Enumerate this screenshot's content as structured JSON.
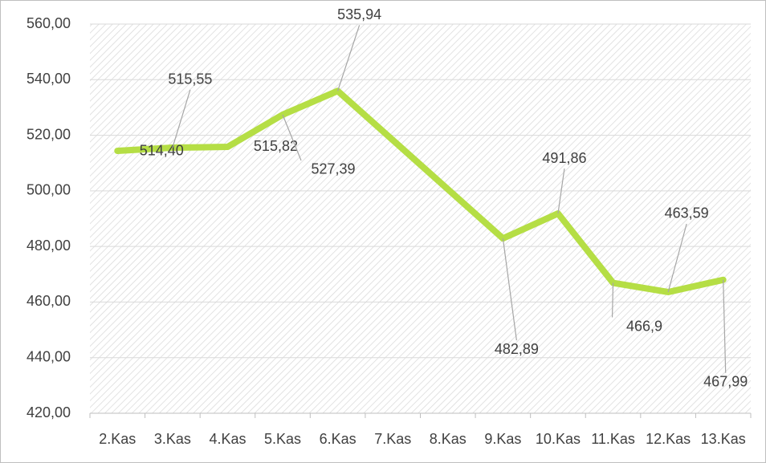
{
  "chart_data": {
    "type": "line",
    "categories": [
      "2.Kas",
      "3.Kas",
      "4.Kas",
      "5.Kas",
      "6.Kas",
      "7.Kas",
      "8.Kas",
      "9.Kas",
      "10.Kas",
      "11.Kas",
      "12.Kas",
      "13.Kas"
    ],
    "series": [
      {
        "color": "#b5de45",
        "values": [
          514.4,
          515.55,
          515.82,
          527.39,
          535.94,
          null,
          null,
          482.89,
          491.86,
          466.9,
          463.59,
          467.99
        ],
        "value_labels": [
          "514,40",
          "515,55",
          "515,82",
          "527,39",
          "535,94",
          null,
          null,
          "482,89",
          "491,86",
          "466,9",
          "463,59",
          "467,99"
        ]
      }
    ],
    "ylim": [
      420,
      560
    ],
    "yticks": [
      {
        "value": 420,
        "label": "420,00"
      },
      {
        "value": 440,
        "label": "440,00"
      },
      {
        "value": 460,
        "label": "460,00"
      },
      {
        "value": 480,
        "label": "480,00"
      },
      {
        "value": 500,
        "label": "500,00"
      },
      {
        "value": 520,
        "label": "520,00"
      },
      {
        "value": 540,
        "label": "540,00"
      },
      {
        "value": 560,
        "label": "560,00"
      }
    ],
    "grid": true
  }
}
